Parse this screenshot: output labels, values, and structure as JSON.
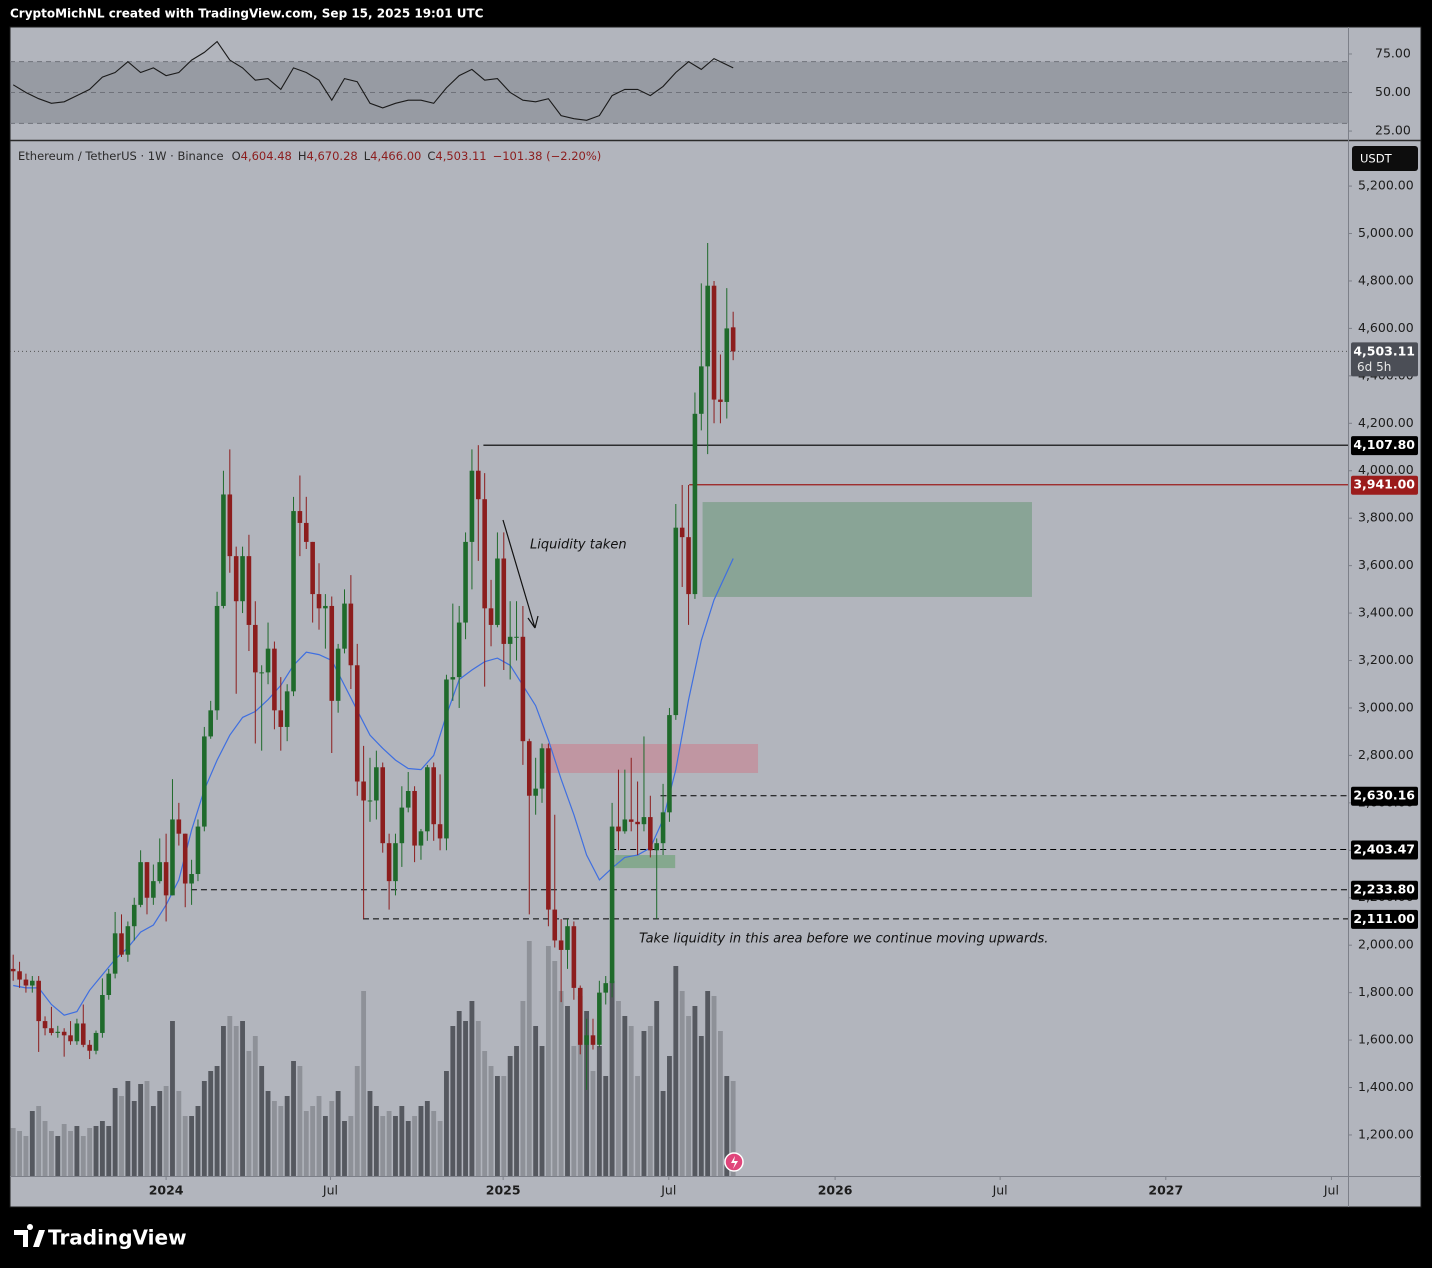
{
  "header": {
    "text": "CryptoMichNL created with TradingView.com, Sep 15, 2025 19:01 UTC"
  },
  "footer": {
    "brand": "TradingView"
  },
  "chart_data": [
    {
      "type": "candlestick",
      "currency": "USDT",
      "legend": {
        "symbol": "Ethereum / TetherUS · 1W · Binance",
        "fields": [
          {
            "label": "O",
            "value": "4,604.48"
          },
          {
            "label": "H",
            "value": "4,670.28"
          },
          {
            "label": "L",
            "value": "4,466.00"
          },
          {
            "label": "C",
            "value": "4,503.11"
          }
        ],
        "change": "−101.38 (−2.20%)"
      },
      "annotations": [
        "Liquidity taken",
        "Take liquidity in this area before we continue moving upwards."
      ],
      "up_color": "#1f6a2b",
      "down_color": "#8c1d1d",
      "open": [
        1900,
        1890,
        1855,
        1830,
        1850,
        1680,
        1650,
        1630,
        1635,
        1620,
        1595,
        1670,
        1580,
        1555,
        1630,
        1790,
        1880,
        2050,
        1960,
        2080,
        2170,
        2350,
        2200,
        2270,
        2350,
        2210,
        2530,
        2470,
        2260,
        2300,
        2500,
        2880,
        2990,
        3430,
        3900,
        3640,
        3450,
        3640,
        3350,
        3150,
        3150,
        3250,
        2990,
        2920,
        3070,
        3830,
        3780,
        3700,
        3480,
        3420,
        3430,
        3030,
        3250,
        3440,
        3180,
        2690,
        2610,
        2610,
        2750,
        2430,
        2270,
        2430,
        2580,
        2650,
        2420,
        2480,
        2750,
        2510,
        2450,
        3120,
        3130,
        3360,
        3700,
        4000,
        3880,
        3420,
        3350,
        3630,
        3270,
        3300,
        3300,
        2860,
        2630,
        2660,
        2830,
        2150,
        2020,
        1980,
        2080,
        1820,
        1580,
        1620,
        1580,
        1800,
        1840,
        2500,
        2480,
        2530,
        2520,
        2510,
        2540,
        2400,
        2430,
        2560,
        2970,
        3760,
        3720,
        3480,
        4240,
        4440,
        4780,
        4300,
        4290,
        4604.48
      ],
      "high": [
        1960,
        1930,
        1880,
        1870,
        1870,
        1700,
        1740,
        1660,
        1650,
        1680,
        1690,
        1750,
        1600,
        1640,
        1860,
        1900,
        2140,
        2130,
        2100,
        2200,
        2400,
        2350,
        2340,
        2450,
        2470,
        2700,
        2600,
        2470,
        2360,
        2530,
        2920,
        3030,
        3490,
        4000,
        4090,
        3680,
        3680,
        3730,
        3450,
        3180,
        3360,
        3280,
        3130,
        3100,
        3890,
        3980,
        3890,
        3700,
        3610,
        3480,
        3470,
        3270,
        3500,
        3560,
        3270,
        2840,
        2790,
        2820,
        2770,
        2470,
        2470,
        2670,
        2730,
        2670,
        2490,
        2760,
        2770,
        2720,
        3140,
        3440,
        3430,
        3740,
        4090,
        4107.8,
        3990,
        3540,
        3740,
        3740,
        3450,
        3450,
        3430,
        2870,
        2790,
        2850,
        2850,
        2550,
        2110,
        2110,
        2100,
        1830,
        1690,
        1690,
        1850,
        1870,
        2600,
        2740,
        2740,
        2790,
        2690,
        2880,
        2630,
        2450,
        2680,
        3000,
        3860,
        3940,
        3940,
        4330,
        4790,
        4960,
        4800,
        4490,
        4770,
        4670.28
      ],
      "low": [
        1850,
        1820,
        1800,
        1800,
        1550,
        1620,
        1620,
        1610,
        1530,
        1580,
        1580,
        1570,
        1520,
        1540,
        1610,
        1770,
        1860,
        1950,
        1930,
        2020,
        2160,
        2130,
        2170,
        2260,
        2100,
        2210,
        2420,
        2160,
        2170,
        2270,
        2480,
        2870,
        2950,
        3420,
        3570,
        3060,
        3400,
        3240,
        2850,
        2820,
        3100,
        2910,
        2820,
        2860,
        3050,
        3640,
        3670,
        3360,
        3330,
        3250,
        2810,
        2980,
        3230,
        3080,
        2630,
        2111,
        2520,
        2530,
        2390,
        2150,
        2210,
        2330,
        2560,
        2350,
        2360,
        2440,
        2440,
        2400,
        2400,
        3030,
        3000,
        3290,
        3500,
        3620,
        3090,
        3260,
        3340,
        3160,
        3120,
        3200,
        2760,
        2130,
        2550,
        2600,
        2080,
        1990,
        1760,
        1900,
        1770,
        1540,
        1390,
        1560,
        1570,
        1750,
        1780,
        2400,
        2470,
        2480,
        2380,
        2480,
        2370,
        2111,
        2380,
        2520,
        2950,
        3510,
        3350,
        3460,
        4170,
        4070,
        4200,
        4200,
        4220,
        4466
      ],
      "close": [
        1890,
        1855,
        1830,
        1850,
        1680,
        1650,
        1630,
        1635,
        1620,
        1595,
        1670,
        1580,
        1555,
        1630,
        1790,
        1880,
        2050,
        1960,
        2080,
        2170,
        2350,
        2200,
        2270,
        2350,
        2210,
        2530,
        2470,
        2260,
        2300,
        2500,
        2880,
        2990,
        3430,
        3900,
        3640,
        3450,
        3640,
        3350,
        3150,
        3150,
        3250,
        2990,
        2920,
        3070,
        3830,
        3780,
        3700,
        3480,
        3420,
        3430,
        3030,
        3250,
        3440,
        3180,
        2690,
        2610,
        2610,
        2750,
        2430,
        2270,
        2430,
        2580,
        2650,
        2420,
        2480,
        2750,
        2510,
        2450,
        3120,
        3130,
        3360,
        3700,
        4000,
        3880,
        3420,
        3350,
        3630,
        3270,
        3300,
        3300,
        2860,
        2630,
        2660,
        2830,
        2150,
        2020,
        1980,
        2080,
        1820,
        1580,
        1620,
        1580,
        1800,
        1840,
        2500,
        2480,
        2530,
        2520,
        2510,
        2540,
        2400,
        2430,
        2560,
        2970,
        3760,
        3720,
        3480,
        4240,
        4440,
        4780,
        4300,
        4290,
        4600,
        4503.11
      ],
      "volume": {
        "up_color": "#55585f",
        "down_color": "#8e9198",
        "ylim": [
          0,
          1035
        ],
        "values": [
          48,
          45,
          40,
          65,
          70,
          55,
          45,
          40,
          52,
          45,
          50,
          40,
          48,
          50,
          55,
          50,
          88,
          80,
          95,
          75,
          92,
          95,
          70,
          85,
          90,
          155,
          85,
          60,
          60,
          70,
          95,
          105,
          110,
          150,
          160,
          150,
          155,
          125,
          140,
          110,
          85,
          75,
          70,
          80,
          115,
          110,
          65,
          70,
          80,
          60,
          75,
          85,
          55,
          60,
          110,
          185,
          85,
          70,
          60,
          65,
          60,
          70,
          55,
          60,
          70,
          75,
          65,
          55,
          105,
          150,
          165,
          155,
          175,
          155,
          125,
          110,
          100,
          100,
          120,
          130,
          175,
          235,
          150,
          130,
          230,
          215,
          185,
          170,
          130,
          180,
          165,
          105,
          130,
          100,
          195,
          175,
          160,
          150,
          100,
          145,
          150,
          175,
          85,
          120,
          210,
          185,
          160,
          170,
          140,
          185,
          180,
          145,
          100,
          95
        ]
      },
      "ma": {
        "color": "#3f6fe0",
        "x": [
          0,
          2,
          4,
          6,
          8,
          10,
          12,
          14,
          16,
          18,
          20,
          22,
          24,
          26,
          28,
          30,
          32,
          34,
          36,
          38,
          40,
          42,
          44,
          46,
          48,
          50,
          52,
          54,
          56,
          58,
          60,
          62,
          64,
          66,
          68,
          70,
          72,
          74,
          76,
          78,
          80,
          82,
          84,
          86,
          88,
          90,
          92,
          94,
          96,
          98,
          100,
          102,
          104,
          106,
          108,
          110,
          113
        ],
        "values": [
          1830,
          1820,
          1820,
          1750,
          1705,
          1720,
          1810,
          1875,
          1940,
          1990,
          2055,
          2085,
          2170,
          2275,
          2485,
          2655,
          2780,
          2885,
          2960,
          2985,
          3035,
          3095,
          3180,
          3235,
          3225,
          3200,
          3095,
          2990,
          2885,
          2830,
          2780,
          2745,
          2740,
          2800,
          2970,
          3120,
          3160,
          3195,
          3210,
          3180,
          3095,
          3010,
          2865,
          2700,
          2550,
          2380,
          2275,
          2325,
          2370,
          2380,
          2410,
          2530,
          2740,
          3035,
          3285,
          3455,
          3630
        ]
      },
      "xlim": [
        -0.5,
        209.5
      ],
      "xticks": [
        {
          "value": 24.0,
          "label": "2024"
        },
        {
          "value": 49.8,
          "label": "Jul"
        },
        {
          "value": 76.9,
          "label": "2025"
        },
        {
          "value": 102.9,
          "label": "Jul"
        },
        {
          "value": 129.0,
          "label": "2026"
        },
        {
          "value": 154.9,
          "label": "Jul"
        },
        {
          "value": 180.9,
          "label": "2027"
        },
        {
          "value": 206.9,
          "label": "Jul"
        }
      ],
      "ylim": [
        1027,
        5390
      ],
      "yticks": [
        {
          "value": 1200,
          "label": "1,200.00"
        },
        {
          "value": 1400,
          "label": "1,400.00"
        },
        {
          "value": 1600,
          "label": "1,600.00"
        },
        {
          "value": 1800,
          "label": "1,800.00"
        },
        {
          "value": 2000,
          "label": "2,000.00"
        },
        {
          "value": 2200,
          "label": "2,200.00"
        },
        {
          "value": 2400,
          "label": "2,400.00"
        },
        {
          "value": 2600,
          "label": "2,600.00"
        },
        {
          "value": 2800,
          "label": "2,800.00"
        },
        {
          "value": 3000,
          "label": "3,000.00"
        },
        {
          "value": 3200,
          "label": "3,200.00"
        },
        {
          "value": 3400,
          "label": "3,400.00"
        },
        {
          "value": 3600,
          "label": "3,600.00"
        },
        {
          "value": 3800,
          "label": "3,800.00"
        },
        {
          "value": 4000,
          "label": "4,000.00"
        },
        {
          "value": 4200,
          "label": "4,200.00"
        },
        {
          "value": 4400,
          "label": "4,400.00"
        },
        {
          "value": 4600,
          "label": "4,600.00"
        },
        {
          "value": 4800,
          "label": "4,800.00"
        },
        {
          "value": 5000,
          "label": "5,000.00"
        },
        {
          "value": 5200,
          "label": "5,200.00"
        }
      ],
      "levels": [
        {
          "value": 4503.11,
          "label": "4,503.11",
          "sub": "6d 5h",
          "start": -0.5,
          "color": "#4b4e56",
          "style": "dotted"
        },
        {
          "value": 4107.8,
          "label": "4,107.80",
          "start": 73.8,
          "color": "#000000",
          "style": "solid"
        },
        {
          "value": 3941,
          "label": "3,941.00",
          "start": 106.1,
          "color": "#9b1c1c",
          "style": "solid"
        },
        {
          "value": 2630.16,
          "label": "2,630.16",
          "start": 101.6,
          "color": "#000000",
          "style": "dashed"
        },
        {
          "value": 2403.47,
          "label": "2,403.47",
          "start": 93.7,
          "color": "#000000",
          "style": "dashed"
        },
        {
          "value": 2233.8,
          "label": "2,233.80",
          "start": 27.9,
          "color": "#000000",
          "style": "dashed"
        },
        {
          "value": 2111,
          "label": "2,111.00",
          "start": 54.9,
          "color": "#000000",
          "style": "dashed"
        }
      ],
      "zones": [
        {
          "x": [
            108.2,
            159.9
          ],
          "y": [
            3468,
            3868
          ],
          "color": "rgba(104,150,118,0.55)"
        },
        {
          "x": [
            82.9,
            116.9
          ],
          "y": [
            2726,
            2848
          ],
          "color": "rgba(205,120,135,0.5)"
        },
        {
          "x": [
            94.5,
            103.9
          ],
          "y": [
            2325,
            2380
          ],
          "color": "rgba(104,160,110,0.6)"
        }
      ]
    },
    {
      "type": "line",
      "color": "#1a1a1a",
      "x": [
        0,
        2,
        4,
        6,
        8,
        10,
        12,
        14,
        16,
        18,
        20,
        22,
        24,
        26,
        28,
        30,
        32,
        34,
        36,
        38,
        40,
        42,
        44,
        46,
        48,
        50,
        52,
        54,
        56,
        58,
        60,
        62,
        64,
        66,
        68,
        70,
        72,
        74,
        76,
        78,
        80,
        82,
        84,
        86,
        88,
        90,
        92,
        94,
        96,
        98,
        100,
        102,
        104,
        106,
        108,
        110,
        113
      ],
      "values": [
        55,
        50,
        46,
        43,
        44,
        48,
        52,
        60,
        63,
        70,
        63,
        66,
        61,
        63,
        71,
        76,
        83,
        71,
        66,
        58,
        59,
        52,
        66,
        63,
        58,
        45,
        59,
        57,
        43,
        40,
        43,
        45,
        45,
        43,
        53,
        61,
        65,
        58,
        59,
        50,
        45,
        44,
        46,
        35,
        33,
        32,
        35,
        48,
        52,
        52,
        48,
        54,
        63,
        70,
        65,
        72,
        66
      ],
      "xlim": [
        -0.5,
        209.5
      ],
      "ylim": [
        19.2,
        92.5
      ],
      "yticks": [
        {
          "value": 25,
          "label": "25.00"
        },
        {
          "value": 50,
          "label": "50.00"
        },
        {
          "value": 75,
          "label": "75.00"
        }
      ],
      "band": [
        30,
        70
      ],
      "band_color": "rgba(95,98,108,0.32)",
      "levels": [
        30,
        50,
        70
      ]
    }
  ]
}
